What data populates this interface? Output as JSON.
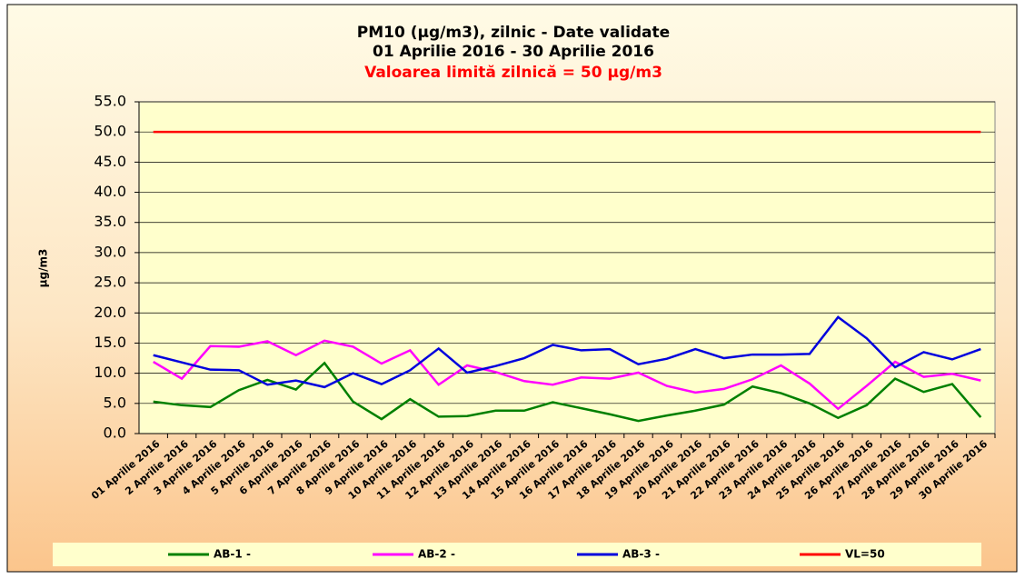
{
  "chart_data": {
    "type": "line",
    "title": "PM10 (µg/m3), zilnic - Date validate",
    "period": "01 Aprilie 2016 - 30 Aprilie 2016",
    "subtitle": "Valoarea limită zilnică = 50 µg/m3",
    "ylabel": "µg/m3",
    "categories": [
      "01 Aprilie 2016",
      "2 Aprilie 2016",
      "3 Aprilie 2016",
      "4 Aprilie 2016",
      "5 Aprilie 2016",
      "6 Aprilie 2016",
      "7 Aprilie 2016",
      "8 Aprilie 2016",
      "9 Aprilie 2016",
      "10 Aprilie 2016",
      "11 Aprilie 2016",
      "12 Aprilie 2016",
      "13 Aprilie 2016",
      "14 Aprilie 2016",
      "15 Aprilie 2016",
      "16 Aprilie 2016",
      "17 Aprilie 2016",
      "18 Aprilie 2016",
      "19 Aprilie 2016",
      "20 Aprilie 2016",
      "21 Aprilie 2016",
      "22 Aprilie 2016",
      "23 Aprilie 2016",
      "24 Aprilie 2016",
      "25 Aprilie 2016",
      "26 Aprilie 2016",
      "27 Aprilie 2016",
      "28 Aprilie 2016",
      "29 Aprilie 2016",
      "30 Aprilie 2016"
    ],
    "series": [
      {
        "name": "AB-1 -",
        "color": "#008000",
        "values": [
          5.3,
          4.7,
          4.4,
          7.2,
          8.9,
          7.3,
          11.7,
          5.3,
          2.4,
          5.7,
          2.8,
          2.9,
          3.8,
          3.8,
          5.2,
          4.2,
          3.2,
          2.1,
          3.0,
          3.8,
          4.8,
          7.8,
          6.7,
          5.0,
          2.6,
          4.7,
          9.1,
          6.9,
          8.2,
          2.7
        ]
      },
      {
        "name": "AB-2 -",
        "color": "#ff00ff",
        "values": [
          11.9,
          9.1,
          14.5,
          14.4,
          15.3,
          13.0,
          15.4,
          14.4,
          11.6,
          13.8,
          8.1,
          11.3,
          10.2,
          8.7,
          8.1,
          9.3,
          9.1,
          10.1,
          7.9,
          6.8,
          7.4,
          9.0,
          11.3,
          8.3,
          4.1,
          7.9,
          11.9,
          9.4,
          9.9,
          8.8
        ]
      },
      {
        "name": "AB-3 -",
        "color": "#0000dd",
        "values": [
          13.0,
          11.8,
          10.6,
          10.5,
          8.1,
          8.8,
          7.7,
          10.0,
          8.2,
          10.5,
          14.1,
          10.1,
          11.2,
          12.5,
          14.7,
          13.8,
          14.0,
          11.5,
          12.4,
          14.0,
          12.5,
          13.1,
          13.1,
          13.2,
          19.3,
          15.8,
          11.0,
          13.5,
          12.3,
          14.0
        ]
      },
      {
        "name": "VL=50",
        "color": "#ff0000",
        "values": [
          50,
          50,
          50,
          50,
          50,
          50,
          50,
          50,
          50,
          50,
          50,
          50,
          50,
          50,
          50,
          50,
          50,
          50,
          50,
          50,
          50,
          50,
          50,
          50,
          50,
          50,
          50,
          50,
          50,
          50
        ]
      }
    ],
    "ylim": [
      0,
      55
    ],
    "yticks": [
      {
        "value": 0,
        "label": "0.0"
      },
      {
        "value": 5,
        "label": "5.0"
      },
      {
        "value": 10,
        "label": "10.0"
      },
      {
        "value": 15,
        "label": "15.0"
      },
      {
        "value": 20,
        "label": "20.0"
      },
      {
        "value": 25,
        "label": "25.0"
      },
      {
        "value": 30,
        "label": "30.0"
      },
      {
        "value": 35,
        "label": "35.0"
      },
      {
        "value": 40,
        "label": "40.0"
      },
      {
        "value": 45,
        "label": "45.0"
      },
      {
        "value": 50,
        "label": "50.0"
      },
      {
        "value": 55,
        "label": "55.0"
      }
    ],
    "grid": true,
    "legend": "bottom"
  }
}
